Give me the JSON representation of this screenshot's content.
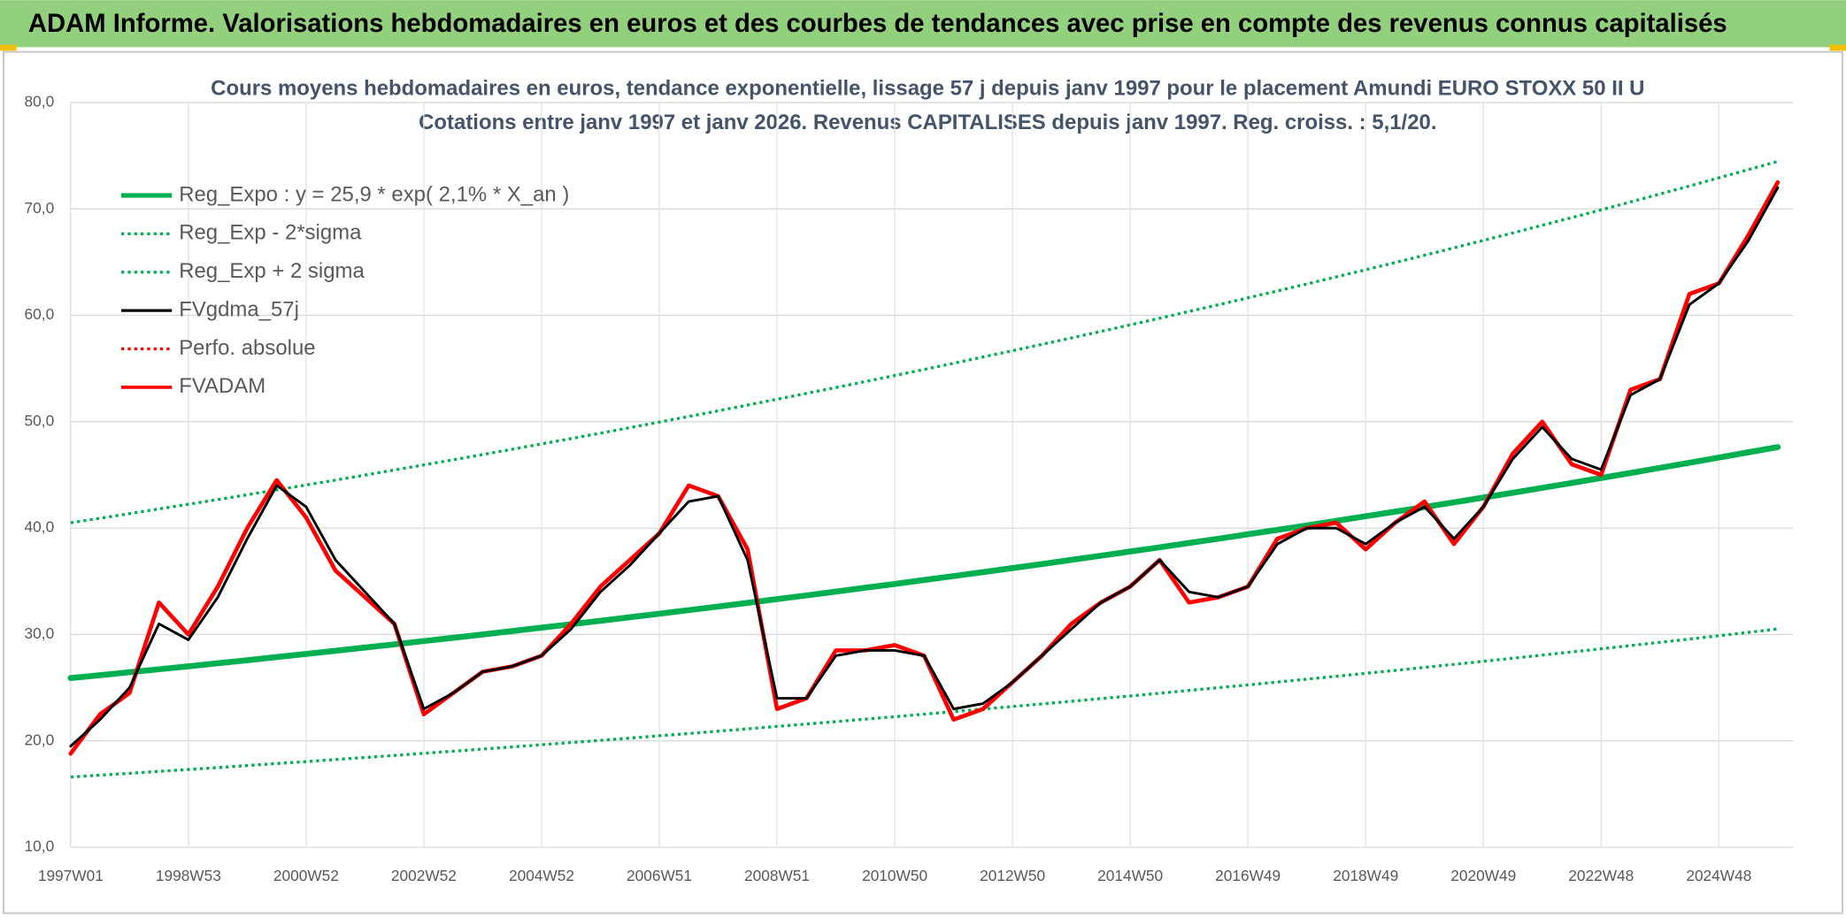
{
  "chart_data": {
    "type": "line",
    "title": "ADAM Informe. Valorisations hebdomadaires en euros et des courbes de tendances avec prise en compte des revenus connus capitalisés",
    "subtitle": [
      "Cours moyens hebdomadaires en euros, tendance exponentielle, lissage 57 j depuis janv 1997 pour le placement Amundi EURO STOXX 50 II U",
      "Cotations entre janv 1997 et janv 2026. Revenus CAPITALISES depuis janv 1997. Reg. croiss. : 5,1/20."
    ],
    "categories": [
      "1997W01",
      null,
      null,
      null,
      "1998W53",
      null,
      null,
      null,
      "2000W52",
      null,
      null,
      null,
      "2002W52",
      null,
      null,
      null,
      "2004W52",
      null,
      null,
      null,
      "2006W51",
      null,
      null,
      null,
      "2008W51",
      null,
      null,
      null,
      "2010W50",
      null,
      null,
      null,
      "2012W50",
      null,
      null,
      null,
      "2014W50",
      null,
      null,
      null,
      "2016W49",
      null,
      null,
      null,
      "2018W49",
      null,
      null,
      null,
      "2020W49",
      null,
      null,
      null,
      "2022W48",
      null,
      null,
      null,
      "2024W48",
      null,
      null
    ],
    "ylim": [
      10,
      80
    ],
    "yticks": [
      {
        "value": 10,
        "label": "10,0"
      },
      {
        "value": 20,
        "label": "20,0"
      },
      {
        "value": 30,
        "label": "30,0"
      },
      {
        "value": 40,
        "label": "40,0"
      },
      {
        "value": 50,
        "label": "50,0"
      },
      {
        "value": 60,
        "label": "60,0"
      },
      {
        "value": 70,
        "label": "70,0"
      },
      {
        "value": 80,
        "label": "80,0"
      }
    ],
    "grid": true,
    "legend": "upper left",
    "series": [
      {
        "name": "Reg_Expo : y = 25,9 * exp( 2,1% *  X_an )",
        "color": "#00b050",
        "style": "solid",
        "values": [
          25.9,
          26.17,
          26.45,
          26.73,
          27.01,
          27.3,
          27.58,
          27.88,
          28.17,
          28.47,
          28.77,
          29.07,
          29.38,
          29.69,
          30.0,
          30.32,
          30.64,
          30.96,
          31.29,
          31.62,
          31.95,
          32.29,
          32.63,
          32.97,
          33.32,
          33.67,
          34.03,
          34.39,
          34.75,
          35.12,
          35.49,
          35.86,
          36.24,
          36.62,
          37.01,
          37.4,
          37.8,
          38.19,
          38.6,
          39.0,
          39.42,
          39.83,
          40.25,
          40.68,
          41.11,
          41.54,
          41.98,
          42.42,
          42.87,
          43.32,
          43.78,
          44.24,
          44.71,
          45.18,
          45.66,
          46.14,
          46.63,
          47.12,
          47.61
        ]
      },
      {
        "name": "Reg_Exp - 2*sigma",
        "color": "#00b050",
        "style": "dotted",
        "values": [
          16.6,
          16.78,
          16.95,
          17.13,
          17.31,
          17.49,
          17.68,
          17.87,
          18.05,
          18.25,
          18.44,
          18.63,
          18.83,
          19.03,
          19.23,
          19.43,
          19.64,
          19.84,
          20.05,
          20.26,
          20.48,
          20.69,
          20.91,
          21.13,
          21.36,
          21.58,
          21.81,
          22.04,
          22.27,
          22.51,
          22.75,
          22.99,
          23.23,
          23.47,
          23.72,
          23.97,
          24.22,
          24.48,
          24.74,
          25.0,
          25.26,
          25.53,
          25.8,
          26.07,
          26.35,
          26.62,
          26.91,
          27.19,
          27.48,
          27.77,
          28.06,
          28.36,
          28.65,
          28.96,
          29.26,
          29.57,
          29.88,
          30.2,
          30.52
        ]
      },
      {
        "name": "Reg_Exp + 2 sigma",
        "color": "#00b050",
        "style": "dotted",
        "values": [
          40.5,
          40.93,
          41.36,
          41.8,
          42.24,
          42.68,
          43.13,
          43.59,
          44.05,
          44.51,
          44.98,
          45.46,
          45.94,
          46.42,
          46.91,
          47.41,
          47.91,
          48.41,
          48.92,
          49.44,
          49.96,
          50.49,
          51.02,
          51.56,
          52.11,
          52.66,
          53.21,
          53.77,
          54.34,
          54.91,
          55.49,
          56.08,
          56.67,
          57.27,
          57.87,
          58.48,
          59.1,
          59.72,
          60.36,
          60.99,
          61.64,
          62.29,
          62.94,
          63.61,
          64.28,
          64.96,
          65.64,
          66.34,
          67.04,
          67.74,
          68.46,
          69.18,
          69.91,
          70.65,
          71.4,
          72.15,
          72.92,
          73.69,
          74.46
        ]
      },
      {
        "name": "FVgdma_57j",
        "color": "#000000",
        "style": "solid",
        "values": [
          19.5,
          22,
          25,
          31,
          29.5,
          33.5,
          39,
          44,
          42,
          37,
          34,
          31,
          23,
          24.5,
          26.5,
          27,
          28,
          30.5,
          34,
          36.5,
          39.5,
          42.5,
          43,
          37,
          24,
          24,
          28,
          28.5,
          28.5,
          28,
          23,
          23.5,
          25.5,
          28,
          30.5,
          33,
          34.5,
          37,
          34,
          33.5,
          34.5,
          38.5,
          40,
          40,
          38.5,
          40.5,
          42,
          39,
          42,
          46.5,
          49.5,
          46.5,
          45.5,
          52.5,
          54,
          61,
          63,
          67,
          72
        ]
      },
      {
        "name": "Perfo. absolue",
        "color": "#ff0000",
        "style": "dotted",
        "values": [
          18.8,
          22.5,
          24.5,
          33,
          30,
          34.5,
          40,
          44.5,
          41,
          36,
          33.5,
          31,
          22.5,
          24.5,
          26.5,
          27,
          28,
          31,
          34.5,
          37,
          39.5,
          44,
          43,
          38,
          23,
          24,
          28.5,
          28.5,
          29,
          28,
          22,
          23,
          25.5,
          28,
          31,
          33,
          34.5,
          37,
          33,
          33.5,
          34.5,
          39,
          40,
          40.5,
          38,
          40.5,
          42.5,
          38.5,
          42,
          47,
          50,
          46,
          45,
          53,
          54,
          62,
          63,
          67.5,
          72.5
        ]
      },
      {
        "name": "FVADAM",
        "color": "#ff0000",
        "style": "solid",
        "values": [
          18.8,
          22.5,
          24.5,
          33,
          30,
          34.5,
          40,
          44.5,
          41,
          36,
          33.5,
          31,
          22.5,
          24.5,
          26.5,
          27,
          28,
          31,
          34.5,
          37,
          39.5,
          44,
          43,
          38,
          23,
          24,
          28.5,
          28.5,
          29,
          28,
          22,
          23,
          25.5,
          28,
          31,
          33,
          34.5,
          37,
          33,
          33.5,
          34.5,
          39,
          40,
          40.5,
          38,
          40.5,
          42.5,
          38.5,
          42,
          47,
          50,
          46,
          45,
          53,
          54,
          62,
          63,
          67.5,
          72.5
        ]
      }
    ]
  }
}
